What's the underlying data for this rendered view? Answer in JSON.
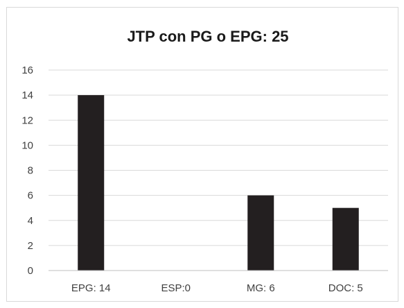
{
  "chart_data": {
    "type": "bar",
    "title": "JTP con PG o EPG: 25",
    "categories": [
      "EPG: 14",
      "ESP:0",
      "MG: 6",
      "DOC: 5"
    ],
    "values": [
      14,
      0,
      6,
      5
    ],
    "ylim": [
      0,
      16
    ],
    "yticks": [
      0,
      2,
      4,
      6,
      8,
      10,
      12,
      14,
      16
    ],
    "xlabel": "",
    "ylabel": "",
    "grid": true,
    "legend": "none",
    "bar_color": "#231f20"
  }
}
